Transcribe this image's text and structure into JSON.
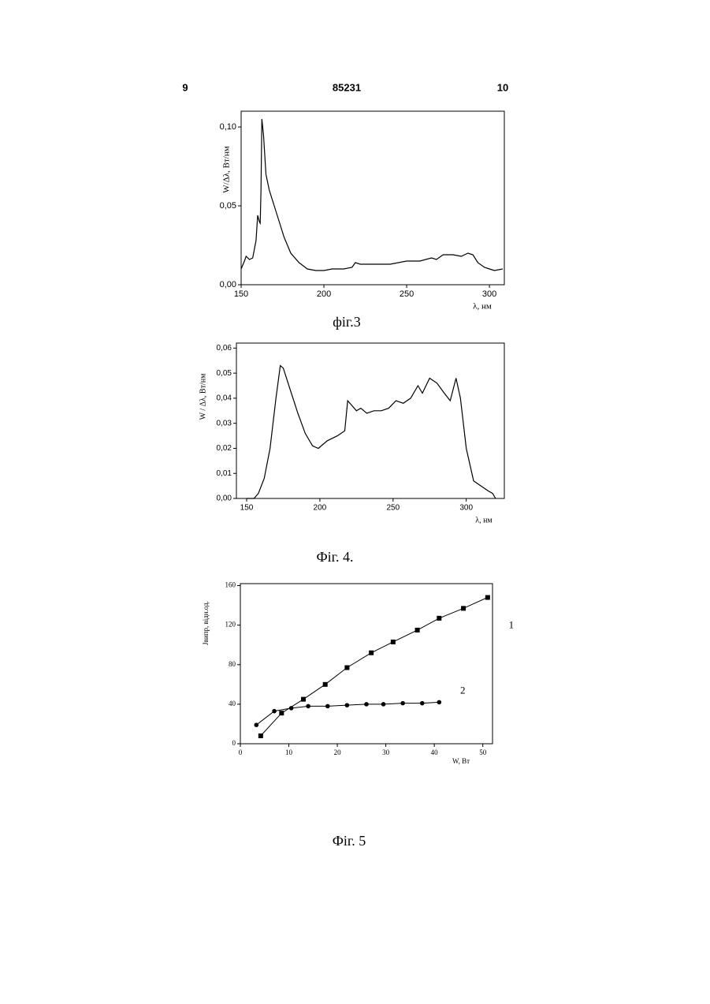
{
  "header": {
    "left": "9",
    "center": "85231",
    "right": "10"
  },
  "chart_data": [
    {
      "type": "line",
      "caption": "фіг.3",
      "ylabel": "W/Δλ, Вт/нм",
      "xlabel": "λ, нм",
      "color": "#000000",
      "x": [
        150,
        152,
        153,
        155,
        157,
        159,
        160,
        161,
        161.5,
        162,
        162.5,
        163.5,
        165,
        167,
        170,
        173,
        176,
        180,
        185,
        190,
        195,
        200,
        205,
        212,
        217,
        219,
        222,
        230,
        240,
        250,
        258,
        265,
        268,
        272,
        278,
        283,
        287,
        290,
        293,
        297,
        300,
        303,
        308
      ],
      "values": [
        0.01,
        0.015,
        0.018,
        0.016,
        0.017,
        0.028,
        0.044,
        0.04,
        0.039,
        0.06,
        0.105,
        0.095,
        0.07,
        0.06,
        0.05,
        0.04,
        0.03,
        0.02,
        0.014,
        0.01,
        0.009,
        0.009,
        0.01,
        0.01,
        0.011,
        0.014,
        0.013,
        0.013,
        0.013,
        0.015,
        0.015,
        0.017,
        0.016,
        0.019,
        0.019,
        0.018,
        0.02,
        0.019,
        0.014,
        0.011,
        0.01,
        0.009,
        0.01
      ],
      "xlim": [
        150,
        309
      ],
      "ylim": [
        0,
        0.11
      ],
      "xticks": [
        150,
        200,
        250,
        300
      ],
      "yticks": [
        {
          "value": 0,
          "label": "0,00"
        },
        {
          "value": 0.05,
          "label": "0,05"
        },
        {
          "value": 0.1,
          "label": "0,10"
        }
      ]
    },
    {
      "type": "line",
      "caption": "Фіг. 4.",
      "ylabel": "W / Δλ, Вт/нм",
      "xlabel": "λ, нм",
      "color": "#000000",
      "x": [
        150,
        155,
        158,
        162,
        166,
        170,
        173,
        175,
        180,
        185,
        190,
        195,
        199,
        205,
        212,
        217,
        219,
        222,
        225,
        228,
        232,
        237,
        242,
        247,
        252,
        257,
        262,
        267,
        270,
        275,
        280,
        285,
        289,
        293,
        296,
        300,
        305,
        310,
        315,
        318,
        320
      ],
      "values": [
        0,
        0,
        0.002,
        0.008,
        0.02,
        0.04,
        0.053,
        0.052,
        0.043,
        0.034,
        0.026,
        0.021,
        0.02,
        0.023,
        0.025,
        0.027,
        0.039,
        0.037,
        0.035,
        0.036,
        0.034,
        0.035,
        0.035,
        0.036,
        0.039,
        0.038,
        0.04,
        0.045,
        0.042,
        0.048,
        0.046,
        0.042,
        0.039,
        0.048,
        0.04,
        0.02,
        0.007,
        0.005,
        0.003,
        0.002,
        0
      ],
      "xlim": [
        143,
        326
      ],
      "ylim": [
        0,
        0.062
      ],
      "xticks": [
        150,
        200,
        250,
        300
      ],
      "yticks": [
        {
          "value": 0,
          "label": "0,00"
        },
        {
          "value": 0.01,
          "label": "0,01"
        },
        {
          "value": 0.02,
          "label": "0,02"
        },
        {
          "value": 0.03,
          "label": "0,03"
        },
        {
          "value": 0.04,
          "label": "0,04"
        },
        {
          "value": 0.05,
          "label": "0,05"
        },
        {
          "value": 0.06,
          "label": "0,06"
        }
      ]
    },
    {
      "type": "scatter-line",
      "caption": "Фіг. 5",
      "ylabel": "Jвипр, відн.од.",
      "xlabel": "W, Вт",
      "series": [
        {
          "name": "1",
          "color": "#000000",
          "marker": "square",
          "x": [
            4.2,
            8.5,
            13,
            17.5,
            22,
            27,
            31.5,
            36.5,
            41,
            46,
            51
          ],
          "values": [
            8,
            31,
            45,
            60,
            77,
            92,
            103,
            115,
            127,
            137,
            148
          ]
        },
        {
          "name": "2",
          "color": "#000000",
          "marker": "circle",
          "x": [
            3.3,
            7,
            10.5,
            14,
            18,
            22,
            26,
            29.5,
            33.5,
            37.5,
            41
          ],
          "values": [
            19,
            33,
            36,
            38,
            38,
            39,
            40,
            40,
            41,
            41,
            42
          ]
        }
      ],
      "xlim": [
        0,
        52
      ],
      "ylim": [
        0,
        162
      ],
      "xticks": [
        0,
        10,
        20,
        30,
        40,
        50
      ],
      "yticks": [
        0,
        40,
        80,
        120,
        160
      ]
    }
  ]
}
